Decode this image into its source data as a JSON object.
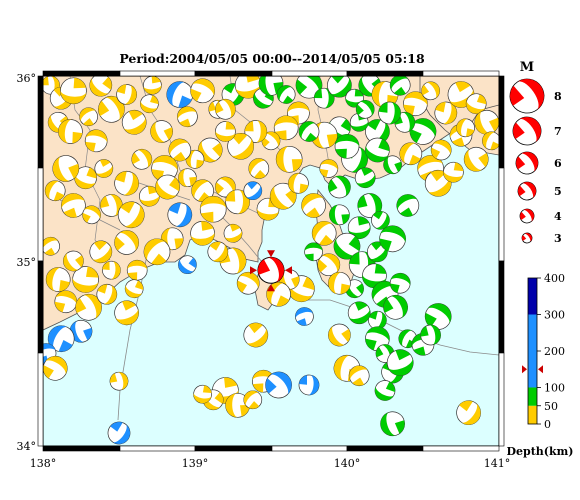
{
  "title": "Period:2004/05/05 00:00--2014/05/05 05:18",
  "map": {
    "lon_range": [
      138,
      141
    ],
    "lat_range": [
      34,
      36
    ],
    "lon_ticks": [
      "138°",
      "139°",
      "140°",
      "141°"
    ],
    "lat_ticks": [
      "34°",
      "35°",
      "36°"
    ],
    "colors": {
      "land": "#fbe3c7",
      "sea": "#dcffff",
      "frame": "#000000",
      "coast": "#555555"
    }
  },
  "magnitude_legend": {
    "title": "M",
    "levels": [
      "8",
      "7",
      "6",
      "5",
      "4",
      "3"
    ]
  },
  "depth_legend": {
    "title": "Depth(km)",
    "tick_labels": [
      "400",
      "300",
      "200",
      "100",
      "50",
      "0"
    ],
    "bands": [
      {
        "from": 0,
        "to": 50,
        "color": "#ffcc00"
      },
      {
        "from": 50,
        "to": 100,
        "color": "#00cc00"
      },
      {
        "from": 100,
        "to": 300,
        "color": "#1e90ff"
      },
      {
        "from": 300,
        "to": 400,
        "color": "#0000aa"
      }
    ],
    "current_depth_marker": 150
  },
  "highlighted_event": {
    "lon": 139.5,
    "lat": 34.95,
    "color": "#ff0000",
    "marker_color": "#cc0000"
  },
  "mechanisms": [
    {
      "lon": 138.05,
      "lat": 35.95,
      "c": "y"
    },
    {
      "lon": 138.12,
      "lat": 35.88,
      "c": "y"
    },
    {
      "lon": 138.2,
      "lat": 35.92,
      "c": "y"
    },
    {
      "lon": 138.1,
      "lat": 35.75,
      "c": "y"
    },
    {
      "lon": 138.18,
      "lat": 35.7,
      "c": "y"
    },
    {
      "lon": 138.3,
      "lat": 35.78,
      "c": "y"
    },
    {
      "lon": 138.35,
      "lat": 35.65,
      "c": "y"
    },
    {
      "lon": 138.45,
      "lat": 35.82,
      "c": "y"
    },
    {
      "lon": 138.55,
      "lat": 35.9,
      "c": "y"
    },
    {
      "lon": 138.6,
      "lat": 35.75,
      "c": "y"
    },
    {
      "lon": 138.7,
      "lat": 35.85,
      "c": "y"
    },
    {
      "lon": 138.78,
      "lat": 35.7,
      "c": "y"
    },
    {
      "lon": 138.9,
      "lat": 35.9,
      "c": "b"
    },
    {
      "lon": 138.95,
      "lat": 35.78,
      "c": "y"
    },
    {
      "lon": 139.05,
      "lat": 35.92,
      "c": "y"
    },
    {
      "lon": 139.15,
      "lat": 35.82,
      "c": "y"
    },
    {
      "lon": 139.25,
      "lat": 35.9,
      "c": "g"
    },
    {
      "lon": 139.35,
      "lat": 35.95,
      "c": "y"
    },
    {
      "lon": 139.45,
      "lat": 35.88,
      "c": "g"
    },
    {
      "lon": 139.5,
      "lat": 35.96,
      "c": "g"
    },
    {
      "lon": 139.6,
      "lat": 35.9,
      "c": "g"
    },
    {
      "lon": 139.68,
      "lat": 35.8,
      "c": "y"
    },
    {
      "lon": 139.75,
      "lat": 35.95,
      "c": "g"
    },
    {
      "lon": 139.85,
      "lat": 35.88,
      "c": "g"
    },
    {
      "lon": 139.95,
      "lat": 35.95,
      "c": "g"
    },
    {
      "lon": 140.05,
      "lat": 35.88,
      "c": "g"
    },
    {
      "lon": 140.15,
      "lat": 35.95,
      "c": "g"
    },
    {
      "lon": 140.25,
      "lat": 35.9,
      "c": "y"
    },
    {
      "lon": 140.35,
      "lat": 35.95,
      "c": "g"
    },
    {
      "lon": 140.45,
      "lat": 35.85,
      "c": "y"
    },
    {
      "lon": 140.55,
      "lat": 35.92,
      "c": "y"
    },
    {
      "lon": 140.65,
      "lat": 35.8,
      "c": "y"
    },
    {
      "lon": 140.75,
      "lat": 35.9,
      "c": "y"
    },
    {
      "lon": 140.85,
      "lat": 35.85,
      "c": "y"
    },
    {
      "lon": 140.92,
      "lat": 35.75,
      "c": "y"
    },
    {
      "lon": 140.95,
      "lat": 35.65,
      "c": "y"
    },
    {
      "lon": 140.75,
      "lat": 35.68,
      "c": "y"
    },
    {
      "lon": 140.5,
      "lat": 35.7,
      "c": "g"
    },
    {
      "lon": 140.38,
      "lat": 35.75,
      "c": "g"
    },
    {
      "lon": 140.2,
      "lat": 35.7,
      "c": "g"
    },
    {
      "lon": 140.08,
      "lat": 35.75,
      "c": "g"
    },
    {
      "lon": 139.95,
      "lat": 35.72,
      "c": "g"
    },
    {
      "lon": 139.85,
      "lat": 35.68,
      "c": "y"
    },
    {
      "lon": 139.75,
      "lat": 35.7,
      "c": "g"
    },
    {
      "lon": 139.6,
      "lat": 35.72,
      "c": "y"
    },
    {
      "lon": 139.5,
      "lat": 35.65,
      "c": "y"
    },
    {
      "lon": 139.4,
      "lat": 35.7,
      "c": "y"
    },
    {
      "lon": 139.3,
      "lat": 35.62,
      "c": "y"
    },
    {
      "lon": 139.2,
      "lat": 35.7,
      "c": "y"
    },
    {
      "lon": 139.1,
      "lat": 35.6,
      "c": "y"
    },
    {
      "lon": 139.0,
      "lat": 35.55,
      "c": "y"
    },
    {
      "lon": 138.9,
      "lat": 35.6,
      "c": "y"
    },
    {
      "lon": 138.8,
      "lat": 35.5,
      "c": "y"
    },
    {
      "lon": 138.65,
      "lat": 35.55,
      "c": "y"
    },
    {
      "lon": 138.55,
      "lat": 35.42,
      "c": "y"
    },
    {
      "lon": 138.4,
      "lat": 35.5,
      "c": "y"
    },
    {
      "lon": 138.28,
      "lat": 35.45,
      "c": "y"
    },
    {
      "lon": 138.15,
      "lat": 35.5,
      "c": "y"
    },
    {
      "lon": 138.08,
      "lat": 35.38,
      "c": "y"
    },
    {
      "lon": 138.2,
      "lat": 35.3,
      "c": "y"
    },
    {
      "lon": 138.32,
      "lat": 35.25,
      "c": "y"
    },
    {
      "lon": 138.45,
      "lat": 35.3,
      "c": "y"
    },
    {
      "lon": 138.58,
      "lat": 35.25,
      "c": "y"
    },
    {
      "lon": 138.7,
      "lat": 35.35,
      "c": "y"
    },
    {
      "lon": 138.82,
      "lat": 35.4,
      "c": "y"
    },
    {
      "lon": 138.95,
      "lat": 35.45,
      "c": "y"
    },
    {
      "lon": 139.05,
      "lat": 35.38,
      "c": "y"
    },
    {
      "lon": 139.12,
      "lat": 35.28,
      "c": "y"
    },
    {
      "lon": 139.2,
      "lat": 35.4,
      "c": "y"
    },
    {
      "lon": 139.28,
      "lat": 35.32,
      "c": "y"
    },
    {
      "lon": 139.38,
      "lat": 35.38,
      "c": "b"
    },
    {
      "lon": 139.48,
      "lat": 35.28,
      "c": "y"
    },
    {
      "lon": 139.58,
      "lat": 35.35,
      "c": "y"
    },
    {
      "lon": 139.68,
      "lat": 35.42,
      "c": "y"
    },
    {
      "lon": 139.78,
      "lat": 35.3,
      "c": "y"
    },
    {
      "lon": 139.88,
      "lat": 35.5,
      "c": "y"
    },
    {
      "lon": 139.95,
      "lat": 35.4,
      "c": "g"
    },
    {
      "lon": 140.05,
      "lat": 35.55,
      "c": "g"
    },
    {
      "lon": 140.12,
      "lat": 35.45,
      "c": "g"
    },
    {
      "lon": 140.2,
      "lat": 35.6,
      "c": "g"
    },
    {
      "lon": 140.3,
      "lat": 35.52,
      "c": "g"
    },
    {
      "lon": 140.42,
      "lat": 35.58,
      "c": "y"
    },
    {
      "lon": 140.55,
      "lat": 35.5,
      "c": "y"
    },
    {
      "lon": 140.62,
      "lat": 35.6,
      "c": "y"
    },
    {
      "lon": 140.15,
      "lat": 35.3,
      "c": "g"
    },
    {
      "lon": 140.22,
      "lat": 35.22,
      "c": "g"
    },
    {
      "lon": 140.08,
      "lat": 35.18,
      "c": "g"
    },
    {
      "lon": 140.0,
      "lat": 35.08,
      "c": "g"
    },
    {
      "lon": 139.95,
      "lat": 35.25,
      "c": "g"
    },
    {
      "lon": 139.85,
      "lat": 35.15,
      "c": "y"
    },
    {
      "lon": 139.78,
      "lat": 35.05,
      "c": "g"
    },
    {
      "lon": 139.88,
      "lat": 34.98,
      "c": "y"
    },
    {
      "lon": 140.1,
      "lat": 34.98,
      "c": "g"
    },
    {
      "lon": 140.2,
      "lat": 35.05,
      "c": "g"
    },
    {
      "lon": 140.18,
      "lat": 34.92,
      "c": "g"
    },
    {
      "lon": 140.05,
      "lat": 34.85,
      "c": "g"
    },
    {
      "lon": 139.95,
      "lat": 34.88,
      "c": "y"
    },
    {
      "lon": 140.25,
      "lat": 34.82,
      "c": "g"
    },
    {
      "lon": 140.35,
      "lat": 34.88,
      "c": "g"
    },
    {
      "lon": 140.32,
      "lat": 34.75,
      "c": "g"
    },
    {
      "lon": 140.2,
      "lat": 34.68,
      "c": "g"
    },
    {
      "lon": 140.08,
      "lat": 34.72,
      "c": "g"
    },
    {
      "lon": 139.7,
      "lat": 34.85,
      "c": "y"
    },
    {
      "lon": 139.62,
      "lat": 34.9,
      "c": "y"
    },
    {
      "lon": 139.55,
      "lat": 34.82,
      "c": "y"
    },
    {
      "lon": 139.72,
      "lat": 34.7,
      "c": "b"
    },
    {
      "lon": 139.35,
      "lat": 34.88,
      "c": "y"
    },
    {
      "lon": 139.25,
      "lat": 35.0,
      "c": "y"
    },
    {
      "lon": 139.15,
      "lat": 35.05,
      "c": "y"
    },
    {
      "lon": 139.05,
      "lat": 35.15,
      "c": "y"
    },
    {
      "lon": 138.95,
      "lat": 34.98,
      "c": "b"
    },
    {
      "lon": 138.85,
      "lat": 35.12,
      "c": "y"
    },
    {
      "lon": 138.75,
      "lat": 35.05,
      "c": "y"
    },
    {
      "lon": 138.62,
      "lat": 34.95,
      "c": "y"
    },
    {
      "lon": 138.55,
      "lat": 35.1,
      "c": "y"
    },
    {
      "lon": 138.45,
      "lat": 34.95,
      "c": "y"
    },
    {
      "lon": 138.38,
      "lat": 35.05,
      "c": "y"
    },
    {
      "lon": 138.28,
      "lat": 34.9,
      "c": "y"
    },
    {
      "lon": 138.2,
      "lat": 35.0,
      "c": "y"
    },
    {
      "lon": 138.1,
      "lat": 34.9,
      "c": "y"
    },
    {
      "lon": 138.05,
      "lat": 35.08,
      "c": "y"
    },
    {
      "lon": 138.15,
      "lat": 34.78,
      "c": "y"
    },
    {
      "lon": 138.3,
      "lat": 34.75,
      "c": "y"
    },
    {
      "lon": 138.42,
      "lat": 34.82,
      "c": "y"
    },
    {
      "lon": 138.55,
      "lat": 34.72,
      "c": "y"
    },
    {
      "lon": 138.6,
      "lat": 34.85,
      "c": "y"
    },
    {
      "lon": 138.25,
      "lat": 34.62,
      "c": "b"
    },
    {
      "lon": 138.12,
      "lat": 34.58,
      "c": "b"
    },
    {
      "lon": 138.02,
      "lat": 34.5,
      "c": "b"
    },
    {
      "lon": 138.08,
      "lat": 34.42,
      "c": "y"
    },
    {
      "lon": 138.5,
      "lat": 34.35,
      "c": "y"
    },
    {
      "lon": 138.5,
      "lat": 34.07,
      "c": "b"
    },
    {
      "lon": 139.2,
      "lat": 34.3,
      "c": "y"
    },
    {
      "lon": 139.12,
      "lat": 34.25,
      "c": "y"
    },
    {
      "lon": 139.28,
      "lat": 34.22,
      "c": "y"
    },
    {
      "lon": 139.38,
      "lat": 34.25,
      "c": "y"
    },
    {
      "lon": 139.45,
      "lat": 34.35,
      "c": "y"
    },
    {
      "lon": 139.55,
      "lat": 34.33,
      "c": "b"
    },
    {
      "lon": 139.75,
      "lat": 34.33,
      "c": "b"
    },
    {
      "lon": 139.4,
      "lat": 34.6,
      "c": "y"
    },
    {
      "lon": 139.05,
      "lat": 34.28,
      "c": "y"
    },
    {
      "lon": 139.95,
      "lat": 34.6,
      "c": "y"
    },
    {
      "lon": 140.0,
      "lat": 34.42,
      "c": "y"
    },
    {
      "lon": 140.08,
      "lat": 34.38,
      "c": "y"
    },
    {
      "lon": 140.2,
      "lat": 34.58,
      "c": "g"
    },
    {
      "lon": 140.25,
      "lat": 34.5,
      "c": "g"
    },
    {
      "lon": 140.3,
      "lat": 34.4,
      "c": "g"
    },
    {
      "lon": 140.35,
      "lat": 34.45,
      "c": "g"
    },
    {
      "lon": 140.25,
      "lat": 34.3,
      "c": "g"
    },
    {
      "lon": 140.3,
      "lat": 34.12,
      "c": "g"
    },
    {
      "lon": 140.4,
      "lat": 34.58,
      "c": "g"
    },
    {
      "lon": 140.5,
      "lat": 34.55,
      "c": "g"
    },
    {
      "lon": 140.6,
      "lat": 34.7,
      "c": "g"
    },
    {
      "lon": 140.55,
      "lat": 34.6,
      "c": "g"
    },
    {
      "lon": 140.8,
      "lat": 34.18,
      "c": "y"
    },
    {
      "lon": 138.72,
      "lat": 35.95,
      "c": "y"
    },
    {
      "lon": 138.38,
      "lat": 35.95,
      "c": "y"
    },
    {
      "lon": 139.62,
      "lat": 35.55,
      "c": "y"
    },
    {
      "lon": 139.42,
      "lat": 35.5,
      "c": "y"
    },
    {
      "lon": 140.0,
      "lat": 35.62,
      "c": "g"
    },
    {
      "lon": 140.12,
      "lat": 35.82,
      "c": "g"
    },
    {
      "lon": 140.28,
      "lat": 35.8,
      "c": "g"
    },
    {
      "lon": 140.6,
      "lat": 35.42,
      "c": "y"
    },
    {
      "lon": 140.7,
      "lat": 35.48,
      "c": "y"
    },
    {
      "lon": 140.85,
      "lat": 35.55,
      "c": "y"
    },
    {
      "lon": 140.78,
      "lat": 35.72,
      "c": "y"
    },
    {
      "lon": 140.4,
      "lat": 35.3,
      "c": "g"
    },
    {
      "lon": 140.3,
      "lat": 35.12,
      "c": "g"
    },
    {
      "lon": 139.2,
      "lat": 35.82,
      "c": "y"
    },
    {
      "lon": 138.9,
      "lat": 35.25,
      "c": "b"
    },
    {
      "lon": 139.25,
      "lat": 35.15,
      "c": "y"
    }
  ]
}
